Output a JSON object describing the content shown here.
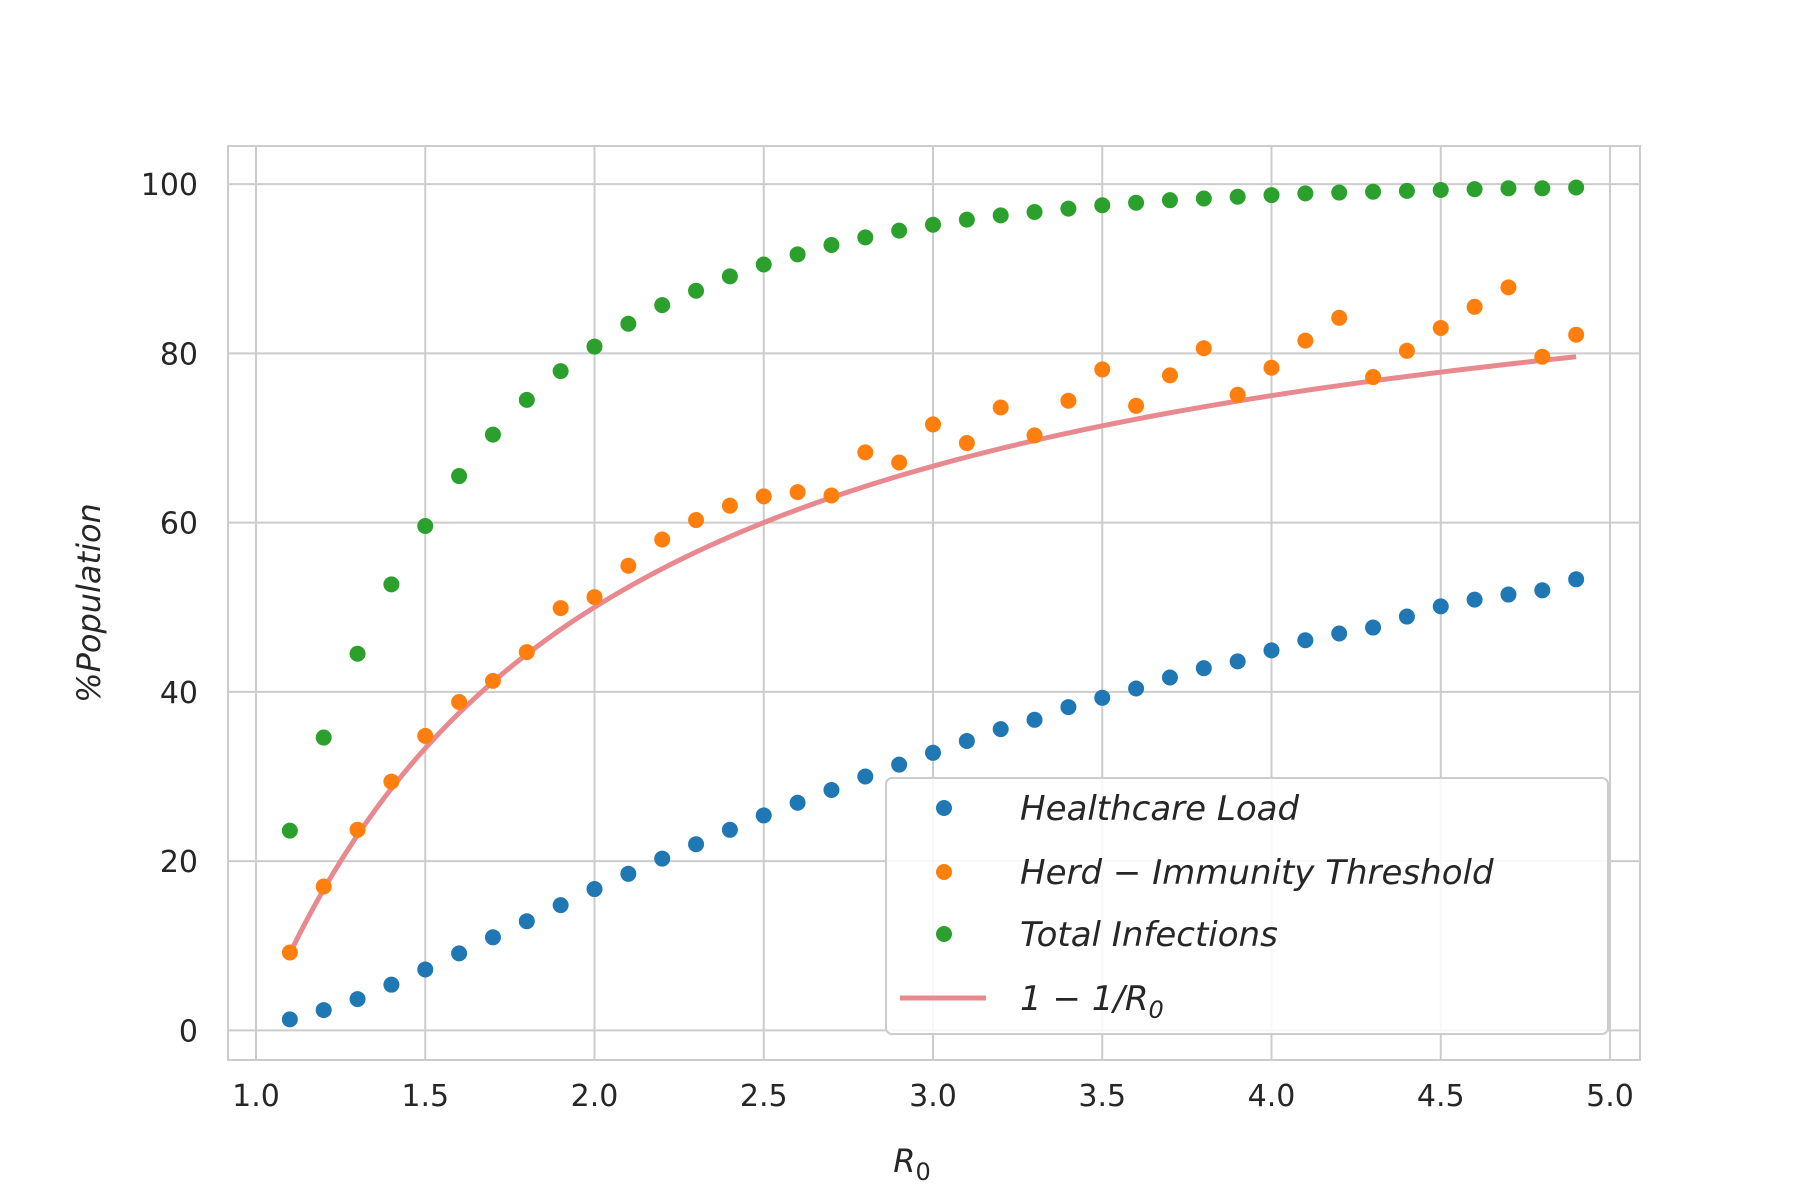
{
  "chart_data": {
    "type": "scatter",
    "x": [
      1.1,
      1.2,
      1.3,
      1.4,
      1.5,
      1.6,
      1.7,
      1.8,
      1.9,
      2.0,
      2.1,
      2.2,
      2.3,
      2.4,
      2.5,
      2.6,
      2.7,
      2.8,
      2.9,
      3.0,
      3.1,
      3.2,
      3.3,
      3.4,
      3.5,
      3.6,
      3.7,
      3.8,
      3.9,
      4.0,
      4.1,
      4.2,
      4.3,
      4.4,
      4.5,
      4.6,
      4.7,
      4.8,
      4.9
    ],
    "series": [
      {
        "name": "Healthcare Load",
        "kind": "points",
        "color": "#1f77b4",
        "values": [
          1.3,
          2.4,
          3.7,
          5.4,
          7.2,
          9.1,
          11.0,
          12.9,
          14.8,
          16.7,
          18.5,
          20.3,
          22.0,
          23.7,
          25.4,
          26.9,
          28.4,
          30.0,
          31.4,
          32.8,
          34.2,
          35.6,
          36.7,
          38.2,
          39.3,
          40.4,
          41.7,
          42.8,
          43.6,
          44.9,
          46.1,
          46.9,
          47.6,
          48.9,
          50.1,
          50.9,
          51.5,
          52.0,
          53.3
        ]
      },
      {
        "name": "Herd−Immunity Threshold",
        "kind": "points",
        "color": "#ff7f0e",
        "values": [
          9.2,
          17.0,
          23.7,
          29.4,
          34.8,
          38.8,
          41.3,
          44.7,
          49.9,
          51.2,
          54.9,
          58.0,
          60.3,
          62.0,
          63.1,
          63.6,
          63.2,
          68.3,
          67.1,
          71.6,
          69.4,
          73.6,
          70.3,
          74.4,
          78.1,
          73.8,
          77.4,
          80.6,
          75.1,
          78.3,
          81.5,
          84.2,
          77.2,
          80.3,
          83.0,
          85.5,
          87.8,
          79.6,
          82.2
        ]
      },
      {
        "name": "Total Infections",
        "kind": "points",
        "color": "#2ca02c",
        "values": [
          23.6,
          34.6,
          44.5,
          52.7,
          59.6,
          65.5,
          70.4,
          74.5,
          77.9,
          80.8,
          83.5,
          85.7,
          87.4,
          89.1,
          90.5,
          91.7,
          92.8,
          93.7,
          94.5,
          95.2,
          95.8,
          96.3,
          96.7,
          97.1,
          97.5,
          97.8,
          98.1,
          98.3,
          98.5,
          98.7,
          98.9,
          99.0,
          99.1,
          99.2,
          99.3,
          99.4,
          99.5,
          99.5,
          99.6
        ]
      },
      {
        "name": "1 − 1/R0",
        "kind": "line",
        "color": "#e8898f",
        "formula": "100*(1-1/x)"
      }
    ],
    "xlabel": "R0",
    "ylabel": "%Population",
    "xlim": [
      1.0,
      5.0
    ],
    "ylim": [
      -3.5,
      104.5
    ],
    "xticks": [
      1.0,
      1.5,
      2.0,
      2.5,
      3.0,
      3.5,
      4.0,
      4.5,
      5.0
    ],
    "xtick_labels": [
      "1.0",
      "1.5",
      "2.0",
      "2.5",
      "3.0",
      "3.5",
      "4.0",
      "4.5",
      "5.0"
    ],
    "yticks": [
      0,
      20,
      40,
      60,
      80,
      100
    ],
    "ytick_labels": [
      "0",
      "20",
      "40",
      "60",
      "80",
      "100"
    ],
    "grid": true,
    "legend_position": "lower right"
  },
  "axes": {
    "xlabel_main": "R",
    "xlabel_sub": "0",
    "ylabel": "%Population"
  },
  "legend": {
    "items": [
      {
        "label": "Healthcare Load"
      },
      {
        "label": "Herd − Immunity Threshold"
      },
      {
        "label": "Total Infections"
      },
      {
        "label_main": "1 − 1/R",
        "label_sub": "0"
      }
    ]
  }
}
